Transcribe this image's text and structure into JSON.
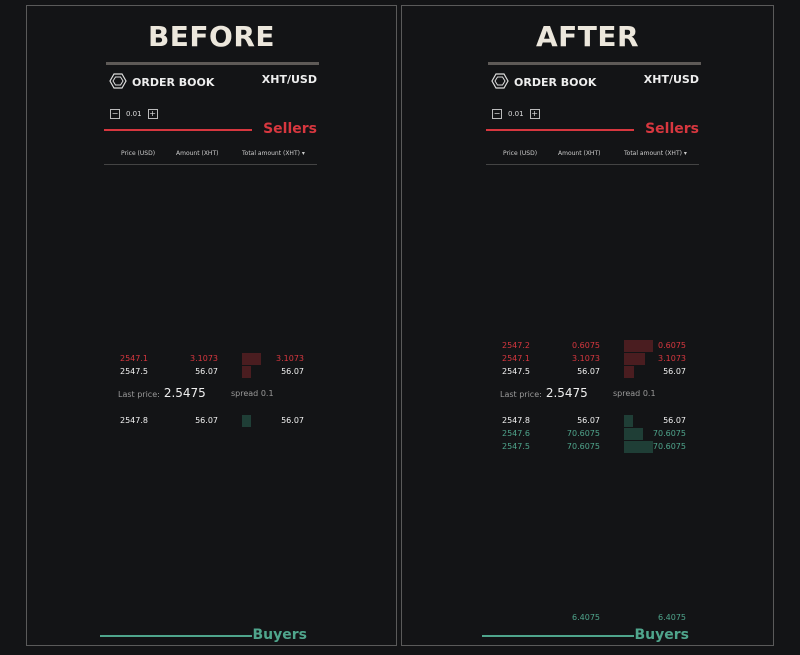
{
  "colors": {
    "sell": "#d7373f",
    "buy": "#4fa58c",
    "sell_bar": "#4a1d20",
    "buy_bar": "#1f3e36",
    "white": "#f2f2f2"
  },
  "panels": [
    {
      "title": "BEFORE",
      "header": {
        "icon": "hexagon-logo-icon",
        "label": "ORDER BOOK",
        "pair": "XHT/USD"
      },
      "stepper": {
        "value": "0.01",
        "minus": "−",
        "plus": "+"
      },
      "sellers_label": "Sellers",
      "columns": [
        "Price (USD)",
        "Amount (XHT)",
        "Total amount (XHT) ▾"
      ],
      "asks": [
        {
          "price": "2547.1",
          "amount": "3.1073",
          "total": "3.1073",
          "depth": 0.66,
          "color": "sell"
        },
        {
          "price": "2547.5",
          "amount": "56.07",
          "total": "56.07",
          "depth": 0.31,
          "color": "white"
        }
      ],
      "last_price_label": "Last price:",
      "last_price": "2.5475",
      "spread_label": "spread",
      "spread": "0.1",
      "bids": [
        {
          "price": "2547.8",
          "amount": "56.07",
          "total": "56.07",
          "depth": 0.31,
          "color": "white"
        }
      ],
      "footer": {
        "amount": "",
        "total": ""
      },
      "buyers_label": "Buyers"
    },
    {
      "title": "AFTER",
      "header": {
        "icon": "hexagon-logo-icon",
        "label": "ORDER BOOK",
        "pair": "XHT/USD"
      },
      "stepper": {
        "value": "0.01",
        "minus": "−",
        "plus": "+"
      },
      "sellers_label": "Sellers",
      "columns": [
        "Price (USD)",
        "Amount (XHT)",
        "Total amount (XHT) ▾"
      ],
      "asks": [
        {
          "price": "2547.2",
          "amount": "0.6075",
          "total": "0.6075",
          "depth": 1.0,
          "color": "sell"
        },
        {
          "price": "2547.1",
          "amount": "3.1073",
          "total": "3.1073",
          "depth": 0.72,
          "color": "sell"
        },
        {
          "price": "2547.5",
          "amount": "56.07",
          "total": "56.07",
          "depth": 0.34,
          "color": "white"
        }
      ],
      "last_price_label": "Last price:",
      "last_price": "2.5475",
      "spread_label": "spread",
      "spread": "0.1",
      "bids": [
        {
          "price": "2547.8",
          "amount": "56.07",
          "total": "56.07",
          "depth": 0.31,
          "color": "white"
        },
        {
          "price": "2547.6",
          "amount": "70.6075",
          "total": "70.6075",
          "depth": 0.66,
          "color": "buy"
        },
        {
          "price": "2547.5",
          "amount": "70.6075",
          "total": "70.6075",
          "depth": 1.0,
          "color": "buy"
        }
      ],
      "footer": {
        "amount": "6.4075",
        "total": "6.4075"
      },
      "buyers_label": "Buyers"
    }
  ]
}
